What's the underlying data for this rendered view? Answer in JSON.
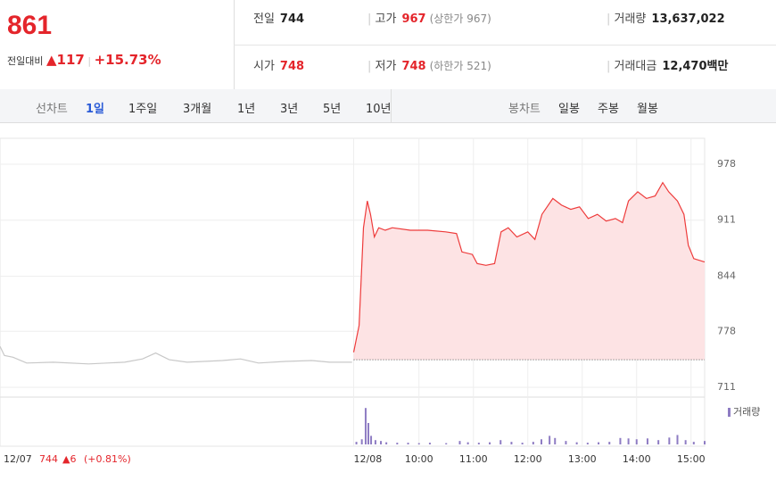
{
  "header": {
    "price": "861",
    "change_label": "전일대비",
    "change": "▲117",
    "change_pct": "+15.73%",
    "prev_label": "전일",
    "prev": "744",
    "high_label": "고가",
    "high": "967",
    "upper_limit": "(상한가 967)",
    "volume_label": "거래량",
    "volume": "13,637,022",
    "open_label": "시가",
    "open": "748",
    "low_label": "저가",
    "low": "748",
    "lower_limit": "(하한가 521)",
    "amount_label": "거래대금",
    "amount": "12,470백만"
  },
  "tabs": {
    "line_label": "선차트",
    "line": [
      "1일",
      "1주일",
      "3개월",
      "1년",
      "3년",
      "5년",
      "10년"
    ],
    "candle_label": "봉차트",
    "candle": [
      "일봉",
      "주봉",
      "월봉"
    ]
  },
  "chart_data": {
    "type": "line",
    "ylim": [
      711,
      978
    ],
    "yticks": [
      711,
      778,
      844,
      911,
      978
    ],
    "xlim": [
      2.3,
      15.25
    ],
    "xticks": [
      {
        "value": 8.8,
        "label": "12/08"
      },
      {
        "value": 10,
        "label": "10:00"
      },
      {
        "value": 11,
        "label": "11:00"
      },
      {
        "value": 12,
        "label": "12:00"
      },
      {
        "value": 13,
        "label": "13:00"
      },
      {
        "value": 14,
        "label": "14:00"
      },
      {
        "value": 15,
        "label": "15:00"
      }
    ],
    "baseline": 744,
    "series": [
      {
        "color": "#c8c8c8",
        "x": [
          2.3,
          2.38,
          2.54,
          2.79,
          3.28,
          3.93,
          4.59,
          4.92,
          5.16,
          5.41,
          5.74,
          6.39,
          6.72,
          7.05,
          7.54,
          8.03,
          8.36,
          8.77
        ],
        "values": [
          760,
          749,
          747,
          740,
          741,
          739,
          741,
          745,
          752,
          744,
          741,
          743,
          745,
          740,
          742,
          743,
          741,
          741
        ]
      },
      {
        "color": "#ee3b3b",
        "fill": "#fde3e4",
        "x": [
          8.8,
          8.9,
          8.98,
          9.05,
          9.11,
          9.18,
          9.26,
          9.38,
          9.51,
          9.84,
          10.16,
          10.49,
          10.69,
          10.79,
          10.98,
          11.07,
          11.23,
          11.39,
          11.51,
          11.64,
          11.8,
          12,
          12.13,
          12.26,
          12.46,
          12.62,
          12.79,
          12.95,
          13.11,
          13.28,
          13.44,
          13.61,
          13.74,
          13.85,
          14.02,
          14.18,
          14.34,
          14.48,
          14.59,
          14.75,
          14.87,
          14.95,
          15.05,
          15.25
        ],
        "values": [
          753,
          785,
          902,
          934,
          918,
          891,
          902,
          899,
          902,
          899,
          899,
          897,
          895,
          873,
          870,
          859,
          857,
          859,
          897,
          902,
          891,
          897,
          888,
          918,
          937,
          929,
          924,
          927,
          913,
          918,
          910,
          913,
          908,
          934,
          945,
          937,
          940,
          956,
          945,
          934,
          918,
          881,
          865,
          861
        ]
      }
    ],
    "volume": {
      "name": "거래량",
      "color": "#8e7cc3",
      "ylim": [
        0,
        100
      ],
      "x": [
        8.85,
        8.95,
        9.02,
        9.07,
        9.12,
        9.2,
        9.3,
        9.4,
        9.6,
        9.8,
        10,
        10.2,
        10.5,
        10.75,
        10.9,
        11.1,
        11.3,
        11.5,
        11.7,
        11.9,
        12.1,
        12.25,
        12.4,
        12.5,
        12.7,
        12.9,
        13.1,
        13.3,
        13.5,
        13.7,
        13.85,
        14,
        14.2,
        14.4,
        14.6,
        14.75,
        14.9,
        15.05,
        15.25
      ],
      "values": [
        6,
        12,
        85,
        50,
        20,
        10,
        8,
        5,
        4,
        4,
        3,
        4,
        3,
        8,
        5,
        4,
        5,
        10,
        6,
        4,
        6,
        12,
        20,
        15,
        8,
        5,
        4,
        5,
        6,
        15,
        14,
        12,
        14,
        10,
        16,
        22,
        10,
        6,
        8
      ]
    },
    "note": {
      "date": "12/07",
      "price": "744",
      "change": "▲6",
      "pct": "(+0.81%)"
    }
  }
}
